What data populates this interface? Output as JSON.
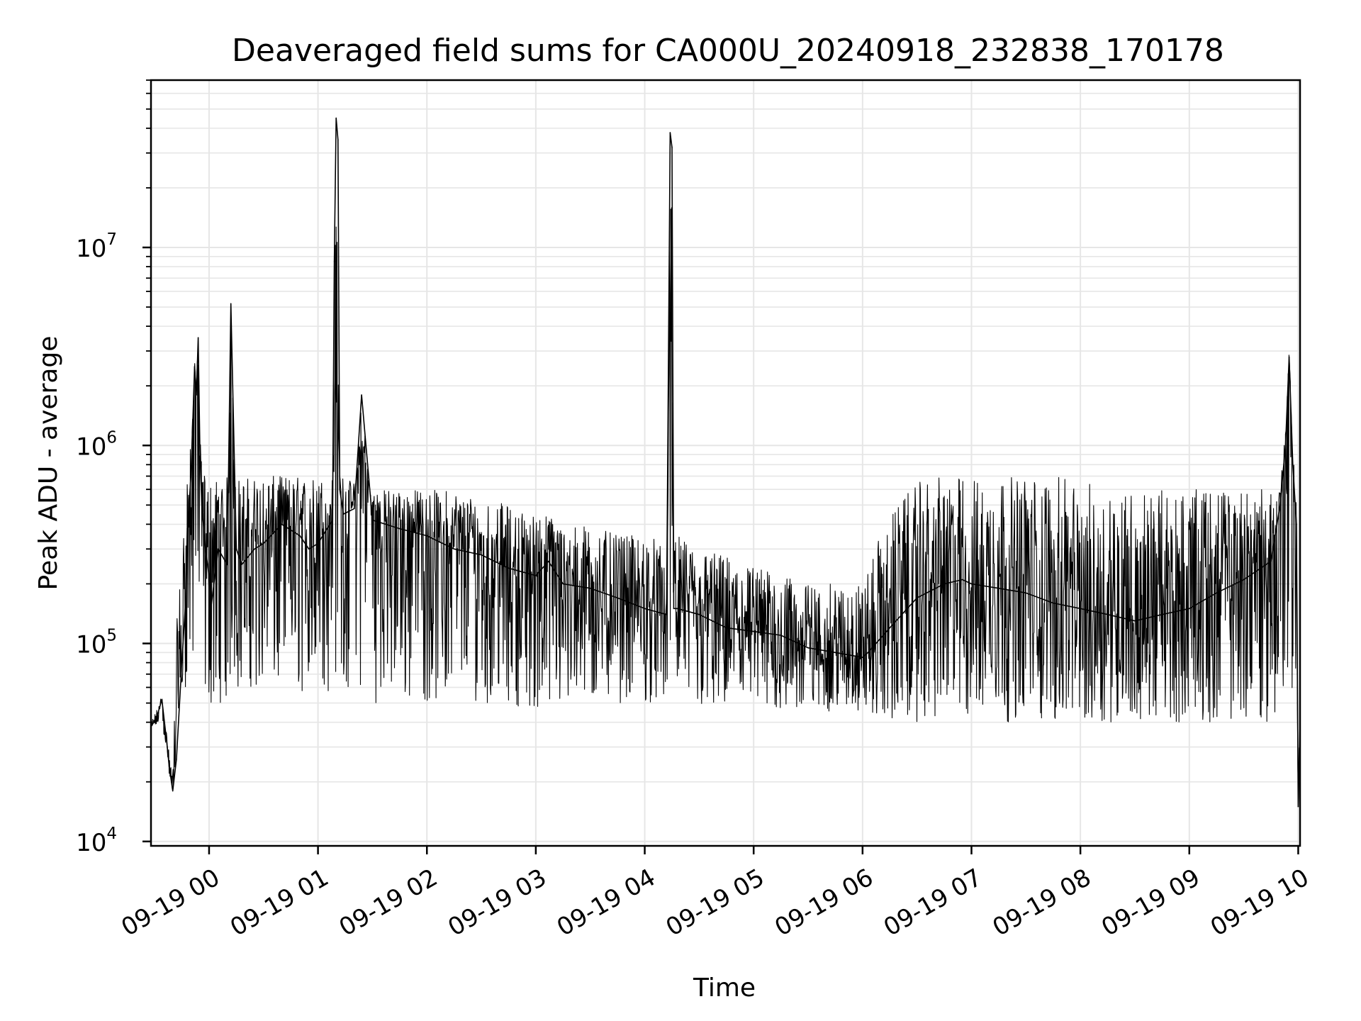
{
  "chart_data": {
    "type": "line",
    "title": "Deaveraged field sums for CA000U_20240918_232838_170178",
    "xlabel": "Time",
    "ylabel": "Peak ADU - average",
    "x_scale": "time",
    "y_scale": "log",
    "grid": true,
    "grid_minor_y": true,
    "legend": "none",
    "line_color": "#000000",
    "grid_color": "#e6e6e6",
    "xlim": [
      "2024-09-18 23:28",
      "2024-09-19 10:01"
    ],
    "ylim": [
      9500,
      70000000
    ],
    "x_ticks": [
      "09-19 00",
      "09-19 01",
      "09-19 02",
      "09-19 03",
      "09-19 04",
      "09-19 05",
      "09-19 06",
      "09-19 07",
      "09-19 08",
      "09-19 09",
      "09-19 10"
    ],
    "y_ticks": [
      {
        "value": 10000,
        "base": "10",
        "exp": "4"
      },
      {
        "value": 100000,
        "base": "10",
        "exp": "5"
      },
      {
        "value": 1000000,
        "base": "10",
        "exp": "6"
      },
      {
        "value": 10000000,
        "base": "10",
        "exp": "7"
      }
    ],
    "series": [
      {
        "x": [
          "2024-09-18 23:28",
          "2024-09-18 23:31",
          "2024-09-18 23:34",
          "2024-09-18 23:37",
          "2024-09-18 23:38",
          "2024-09-18 23:40",
          "2024-09-18 23:42",
          "2024-09-18 23:45",
          "2024-09-18 23:47",
          "2024-09-18 23:48",
          "2024-09-18 23:49",
          "2024-09-18 23:50",
          "2024-09-18 23:51",
          "2024-09-18 23:52",
          "2024-09-18 23:53",
          "2024-09-18 23:54",
          "2024-09-18 23:55",
          "2024-09-18 23:56",
          "2024-09-18 23:58",
          "2024-09-19 00:00",
          "2024-09-19 00:01",
          "2024-09-19 00:05",
          "2024-09-19 00:10",
          "2024-09-19 00:12",
          "2024-09-19 00:15",
          "2024-09-19 00:18",
          "2024-09-19 00:25",
          "2024-09-19 00:30",
          "2024-09-19 00:40",
          "2024-09-19 00:50",
          "2024-09-19 00:55",
          "2024-09-19 01:00",
          "2024-09-19 01:05",
          "2024-09-19 01:08",
          "2024-09-19 01:09",
          "2024-09-19 01:10",
          "2024-09-19 01:11",
          "2024-09-19 01:12",
          "2024-09-19 01:14",
          "2024-09-19 01:20",
          "2024-09-19 01:24",
          "2024-09-19 01:30",
          "2024-09-19 01:45",
          "2024-09-19 02:00",
          "2024-09-19 02:15",
          "2024-09-19 02:30",
          "2024-09-19 02:45",
          "2024-09-19 03:00",
          "2024-09-19 03:07",
          "2024-09-19 03:15",
          "2024-09-19 03:30",
          "2024-09-19 03:45",
          "2024-09-19 04:00",
          "2024-09-19 04:12",
          "2024-09-19 04:14",
          "2024-09-19 04:15",
          "2024-09-19 04:16",
          "2024-09-19 04:18",
          "2024-09-19 04:30",
          "2024-09-19 04:45",
          "2024-09-19 05:00",
          "2024-09-19 05:15",
          "2024-09-19 05:30",
          "2024-09-19 05:45",
          "2024-09-19 06:00",
          "2024-09-19 06:03",
          "2024-09-19 06:15",
          "2024-09-19 06:30",
          "2024-09-19 06:45",
          "2024-09-19 06:55",
          "2024-09-19 07:00",
          "2024-09-19 07:15",
          "2024-09-19 07:30",
          "2024-09-19 07:45",
          "2024-09-19 08:00",
          "2024-09-19 08:15",
          "2024-09-19 08:30",
          "2024-09-19 08:45",
          "2024-09-19 09:00",
          "2024-09-19 09:15",
          "2024-09-19 09:30",
          "2024-09-19 09:45",
          "2024-09-19 09:50",
          "2024-09-19 09:53",
          "2024-09-19 09:55",
          "2024-09-19 09:57",
          "2024-09-19 09:59",
          "2024-09-19 10:00",
          "2024-09-19 10:01"
        ],
        "y": [
          38000,
          42000,
          52000,
          30000,
          24000,
          18000,
          26000,
          80000,
          160000,
          380000,
          500000,
          700000,
          1300000,
          2500000,
          1800000,
          3500000,
          900000,
          500000,
          300000,
          220000,
          150000,
          300000,
          250000,
          5200000,
          300000,
          250000,
          300000,
          320000,
          400000,
          350000,
          300000,
          320000,
          380000,
          420000,
          8500000,
          45000000,
          35000000,
          600000,
          450000,
          480000,
          1800000,
          420000,
          380000,
          350000,
          300000,
          280000,
          240000,
          220000,
          260000,
          200000,
          190000,
          170000,
          150000,
          140000,
          38000000,
          32000000,
          150000,
          150000,
          140000,
          120000,
          115000,
          110000,
          95000,
          90000,
          85000,
          90000,
          120000,
          170000,
          200000,
          210000,
          200000,
          190000,
          180000,
          160000,
          150000,
          140000,
          130000,
          140000,
          150000,
          180000,
          210000,
          260000,
          500000,
          1000000,
          2800000,
          800000,
          400000,
          15000,
          40000
        ],
        "y_band_low": [
          35000,
          38000,
          40000,
          27000,
          20000,
          18000,
          60000,
          55000,
          60000,
          60000,
          60000,
          60000,
          60000,
          60000,
          60000,
          60000,
          55000,
          55000,
          50000,
          50000,
          48000,
          50000,
          50000,
          50000,
          55000,
          60000,
          60000,
          55000,
          55000,
          55000,
          55000,
          55000,
          55000,
          55000,
          55000,
          55000,
          55000,
          55000,
          55000,
          55000,
          55000,
          50000,
          50000,
          50000,
          50000,
          50000,
          50000,
          45000,
          45000,
          45000,
          50000,
          50000,
          50000,
          50000,
          50000,
          50000,
          50000,
          50000,
          45000,
          45000,
          45000,
          45000,
          45000,
          45000,
          45000,
          45000,
          40000,
          40000,
          40000,
          40000,
          40000,
          40000,
          40000,
          40000,
          40000,
          40000,
          40000,
          40000,
          40000,
          40000,
          40000,
          40000,
          40000,
          40000,
          40000,
          40000,
          40000,
          15000,
          20000
        ],
        "y_band_high": [
          40000,
          46000,
          55000,
          33000,
          28000,
          22000,
          120000,
          300000,
          600000,
          800000,
          900000,
          1000000,
          1500000,
          2800000,
          2000000,
          3800000,
          1100000,
          800000,
          700000,
          700000,
          700000,
          700000,
          700000,
          700000,
          700000,
          700000,
          700000,
          700000,
          700000,
          700000,
          700000,
          700000,
          700000,
          700000,
          700000,
          700000,
          700000,
          700000,
          700000,
          650000,
          650000,
          600000,
          600000,
          600000,
          600000,
          550000,
          500000,
          450000,
          450000,
          400000,
          400000,
          350000,
          350000,
          350000,
          350000,
          350000,
          350000,
          350000,
          300000,
          280000,
          250000,
          220000,
          200000,
          200000,
          200000,
          250000,
          450000,
          650000,
          700000,
          700000,
          700000,
          700000,
          700000,
          700000,
          650000,
          650000,
          600000,
          600000,
          600000,
          600000,
          600000,
          600000,
          600000,
          1200000,
          3000000,
          1000000,
          500000,
          20000,
          45000
        ]
      }
    ]
  }
}
